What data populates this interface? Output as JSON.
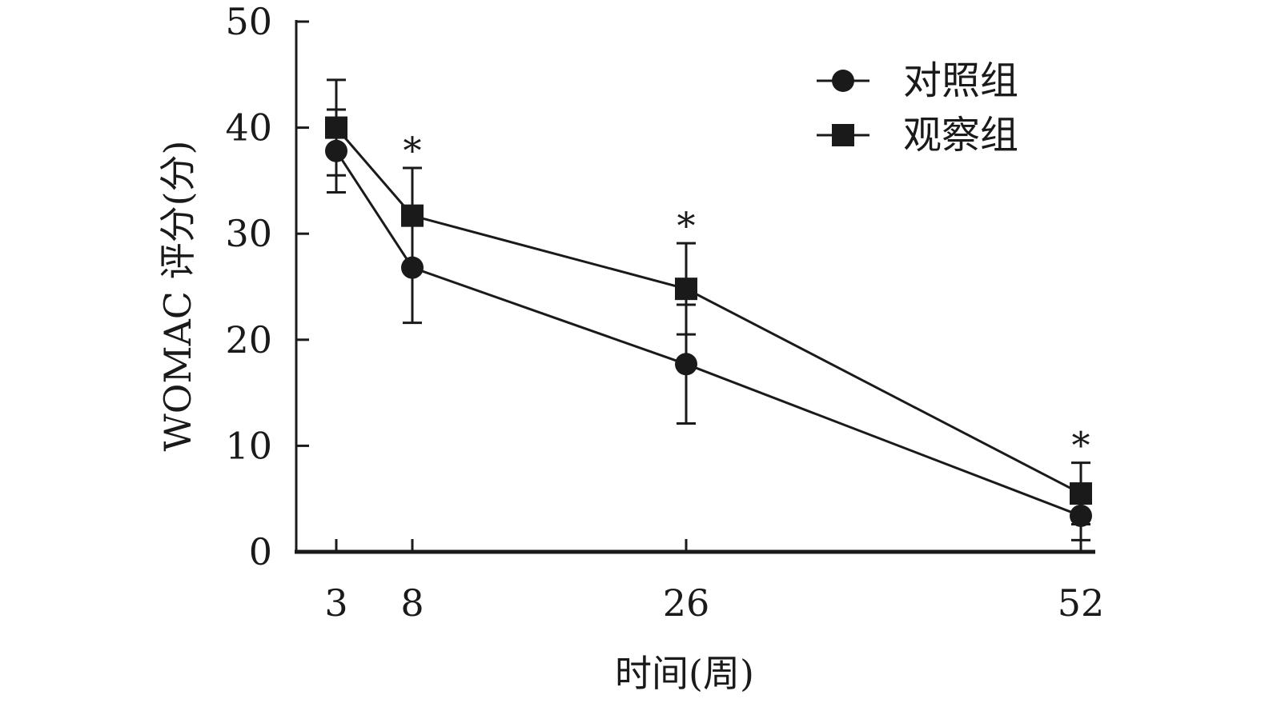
{
  "chart_data": {
    "type": "line",
    "xlabel": "时间(周)",
    "ylabel": "WOMAC 评分(分)",
    "x": [
      3,
      8,
      26,
      52
    ],
    "x_ticks": [
      "3",
      "8",
      "26",
      "52"
    ],
    "ylim": [
      0,
      50
    ],
    "y_ticks": [
      "0",
      "10",
      "20",
      "30",
      "40",
      "50"
    ],
    "grid": false,
    "legend_position": "top-right",
    "series": [
      {
        "name": "对照组",
        "marker": "circle",
        "color": "#1a1a1a",
        "values": [
          37.8,
          26.8,
          17.7,
          3.4
        ],
        "error": [
          3.9,
          5.2,
          5.6,
          2.3
        ]
      },
      {
        "name": "观察组",
        "marker": "square",
        "color": "#1a1a1a",
        "values": [
          40.0,
          31.7,
          24.8,
          5.5
        ],
        "error": [
          4.5,
          4.5,
          4.3,
          2.9
        ]
      }
    ],
    "annotations": [
      {
        "x": 8,
        "text": "*"
      },
      {
        "x": 26,
        "text": "*"
      },
      {
        "x": 52,
        "text": "*"
      }
    ]
  }
}
